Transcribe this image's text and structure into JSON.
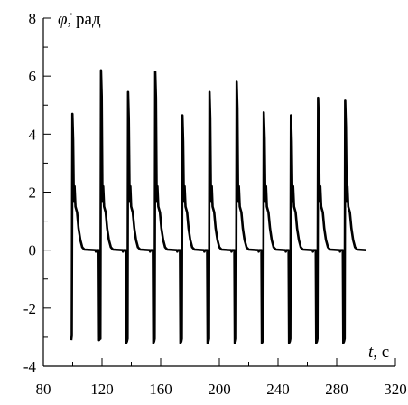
{
  "chart_data": {
    "type": "line",
    "xlabel_symbol": "t",
    "xlabel_unit": ", c",
    "ylabel_symbol": "φ̇",
    "ylabel_unit": ", рад",
    "xlim": [
      80,
      320
    ],
    "ylim": [
      -4,
      8
    ],
    "x_ticks": [
      80,
      120,
      160,
      200,
      240,
      280,
      320
    ],
    "x_tick_labels": [
      "80",
      "120",
      "160",
      "200",
      "240",
      "280",
      "320"
    ],
    "x_minor_step": 20,
    "y_ticks": [
      -4,
      -2,
      0,
      2,
      4,
      6,
      8
    ],
    "y_tick_labels": [
      "-4",
      "-2",
      "0",
      "2",
      "4",
      "6",
      "8"
    ],
    "y_minor_step": 1,
    "grid": false,
    "line_color": "#000000",
    "series": [
      {
        "pulses": [
          {
            "t": 100,
            "peak": 4.7,
            "min": -3.1
          },
          {
            "t": 119.5,
            "peak": 6.2,
            "min": -3.2
          },
          {
            "t": 138,
            "peak": 5.45,
            "min": -3.2
          },
          {
            "t": 156.5,
            "peak": 6.15,
            "min": -3.2
          },
          {
            "t": 175,
            "peak": 4.65,
            "min": -3.2
          },
          {
            "t": 193.5,
            "peak": 5.45,
            "min": -3.2
          },
          {
            "t": 212,
            "peak": 5.8,
            "min": -3.2
          },
          {
            "t": 230.5,
            "peak": 4.75,
            "min": -3.2
          },
          {
            "t": 249,
            "peak": 4.65,
            "min": -3.2
          },
          {
            "t": 267.5,
            "peak": 5.25,
            "min": -3.2
          },
          {
            "t": 286,
            "peak": 5.15,
            "min": -3.2
          }
        ],
        "start": [
          99,
          -3.1
        ],
        "end": [
          300,
          0.0
        ]
      }
    ]
  }
}
